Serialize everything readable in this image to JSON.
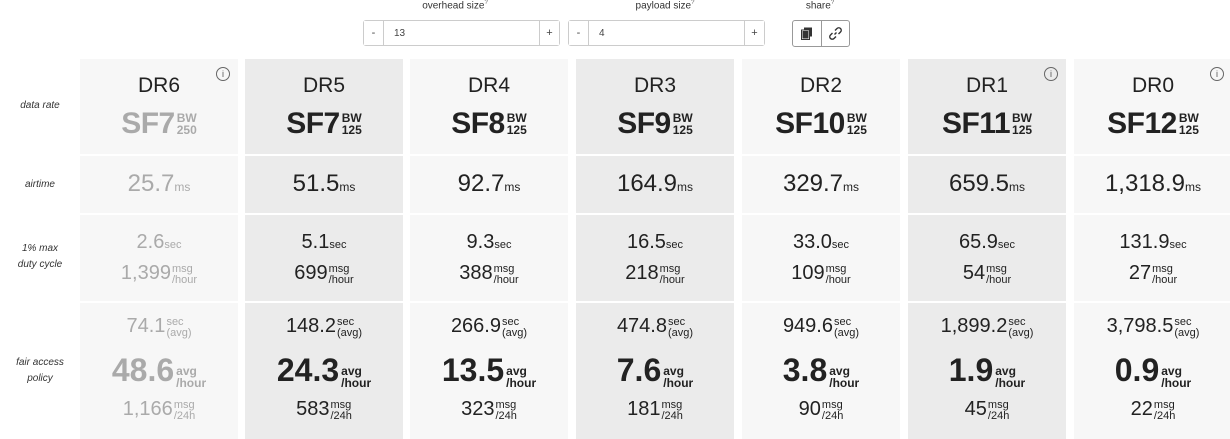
{
  "controls": {
    "overhead": {
      "label": "overhead size",
      "value": "13"
    },
    "payload": {
      "label": "payload size",
      "value": "4"
    },
    "share": {
      "label": "share"
    },
    "minus": "-",
    "plus": "+",
    "help": "?"
  },
  "row_labels": {
    "data_rate": "data rate",
    "airtime": "airtime",
    "duty1": "1% max",
    "duty2": "duty cycle",
    "fair1": "fair access",
    "fair2": "policy"
  },
  "units": {
    "bw": "BW",
    "ms": "ms",
    "sec": "sec",
    "msg": "msg",
    "hour": "/hour",
    "avg_paren": "(avg)",
    "avg": "avg",
    "h24": "/24h"
  },
  "colors": {
    "cell_light": "#f7f7f7",
    "cell_dark": "#ebebeb",
    "faded_text": "#aaaaaa"
  },
  "columns": [
    {
      "dr": "DR6",
      "sf": "SF7",
      "bw": "250",
      "airtime": "25.7",
      "duty_sec": "2.6",
      "duty_msg": "1,399",
      "fair_sec": "74.1",
      "fair_avg": "48.6",
      "fair_msg": "1,166",
      "info": "i",
      "faded": true,
      "dark": false
    },
    {
      "dr": "DR5",
      "sf": "SF7",
      "bw": "125",
      "airtime": "51.5",
      "duty_sec": "5.1",
      "duty_msg": "699",
      "fair_sec": "148.2",
      "fair_avg": "24.3",
      "fair_msg": "583",
      "info": "",
      "faded": false,
      "dark": true
    },
    {
      "dr": "DR4",
      "sf": "SF8",
      "bw": "125",
      "airtime": "92.7",
      "duty_sec": "9.3",
      "duty_msg": "388",
      "fair_sec": "266.9",
      "fair_avg": "13.5",
      "fair_msg": "323",
      "info": "",
      "faded": false,
      "dark": false
    },
    {
      "dr": "DR3",
      "sf": "SF9",
      "bw": "125",
      "airtime": "164.9",
      "duty_sec": "16.5",
      "duty_msg": "218",
      "fair_sec": "474.8",
      "fair_avg": "7.6",
      "fair_msg": "181",
      "info": "",
      "faded": false,
      "dark": true
    },
    {
      "dr": "DR2",
      "sf": "SF10",
      "bw": "125",
      "airtime": "329.7",
      "duty_sec": "33.0",
      "duty_msg": "109",
      "fair_sec": "949.6",
      "fair_avg": "3.8",
      "fair_msg": "90",
      "info": "",
      "faded": false,
      "dark": false
    },
    {
      "dr": "DR1",
      "sf": "SF11",
      "bw": "125",
      "airtime": "659.5",
      "duty_sec": "65.9",
      "duty_msg": "54",
      "fair_sec": "1,899.2",
      "fair_avg": "1.9",
      "fair_msg": "45",
      "info": "i",
      "faded": false,
      "dark": true
    },
    {
      "dr": "DR0",
      "sf": "SF12",
      "bw": "125",
      "airtime": "1,318.9",
      "duty_sec": "131.9",
      "duty_msg": "27",
      "fair_sec": "3,798.5",
      "fair_avg": "0.9",
      "fair_msg": "22",
      "info": "i",
      "faded": false,
      "dark": false
    }
  ]
}
